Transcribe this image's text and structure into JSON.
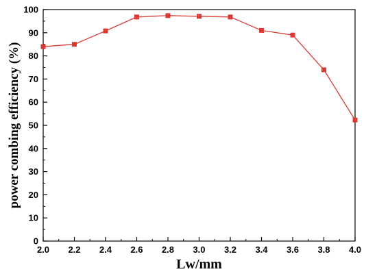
{
  "chart_data": {
    "type": "line",
    "xlabel": "Lw/mm",
    "ylabel": "power combing efficiency (%)",
    "xlim": [
      2.0,
      4.0
    ],
    "ylim": [
      0,
      100
    ],
    "xticks": [
      "2.0",
      "2.2",
      "2.4",
      "2.6",
      "2.8",
      "3.0",
      "3.2",
      "3.4",
      "3.6",
      "3.8",
      "4.0"
    ],
    "yticks": [
      "0",
      "10",
      "20",
      "30",
      "40",
      "50",
      "60",
      "70",
      "80",
      "90",
      "100"
    ],
    "grid": false,
    "series": [
      {
        "color": "#d93a34",
        "marker": "square",
        "x": [
          2.0,
          2.2,
          2.4,
          2.6,
          2.8,
          3.0,
          3.2,
          3.4,
          3.6,
          3.8,
          4.0
        ],
        "y": [
          84.0,
          85.0,
          90.8,
          96.8,
          97.4,
          97.1,
          96.8,
          91.0,
          89.0,
          74.0,
          52.3
        ]
      }
    ]
  }
}
